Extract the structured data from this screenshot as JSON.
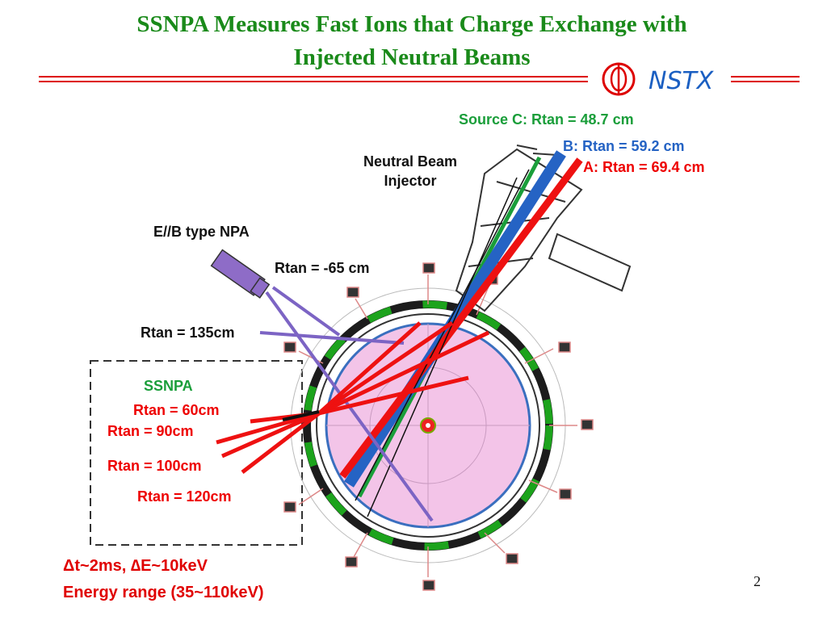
{
  "title": {
    "lines": [
      "SSNPA Measures Fast Ions that Charge Exchange with",
      "Injected Neutral Beams"
    ]
  },
  "logo": {
    "text": "NSTX"
  },
  "diagram": {
    "beam_sources": [
      {
        "label": "Source C:  Rtan = 48.7 cm"
      },
      {
        "label": "B: Rtan = 59.2 cm"
      },
      {
        "label": "A: Rtan = 69.4 cm"
      }
    ],
    "injector_label": [
      "Neutral Beam",
      "Injector"
    ],
    "npa_label": "E//B type NPA",
    "npa_rtan_labels": [
      "Rtan = -65 cm",
      "Rtan = 135cm"
    ],
    "ssnpa": {
      "title": "SSNPA",
      "rtan_labels": [
        "Rtan = 60cm",
        "Rtan = 90cm",
        "Rtan = 100cm",
        "Rtan = 120cm"
      ]
    }
  },
  "notes": [
    "Δt~2ms, ∆E~10keV",
    "Energy range (35~110keV)"
  ],
  "page_number": "2"
}
